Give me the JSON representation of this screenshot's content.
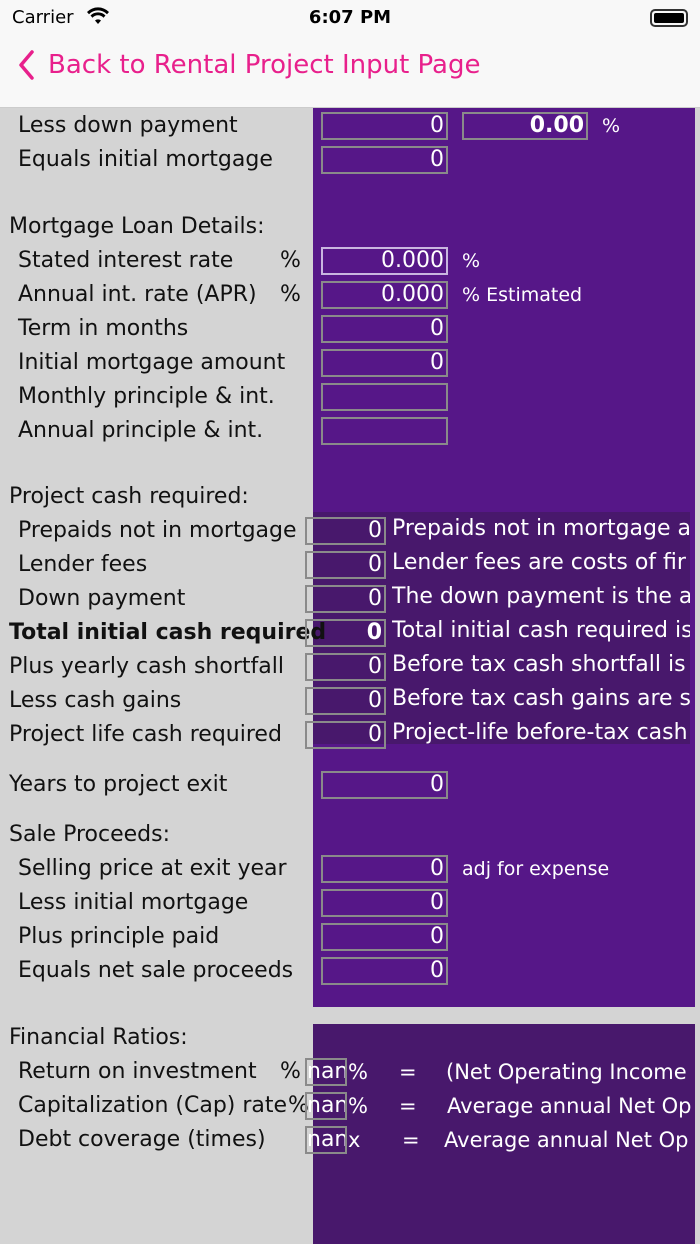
{
  "status_bar": {
    "carrier": "Carrier",
    "time": "6:07 PM"
  },
  "nav": {
    "back_label": "Back to Rental Project Input Page"
  },
  "colors": {
    "accent": "#e8208c",
    "panel": "#561788",
    "panel_dark": "#48186c",
    "background": "#d4d4d4"
  },
  "rows": [
    {
      "label": "Less down payment",
      "indent": true,
      "value": "0",
      "value2": "0.00",
      "suffix": "%"
    },
    {
      "label": "Equals initial mortgage",
      "indent": true,
      "value": "0"
    },
    {
      "label": "Mortgage Loan Details:",
      "header": true
    },
    {
      "label": "Stated interest rate",
      "indent": true,
      "unit": "%",
      "value": "0.000",
      "suffix": "%",
      "focused": true
    },
    {
      "label": "Annual int. rate (APR)",
      "indent": true,
      "unit": "%",
      "value": "0.000",
      "suffix": "% Estimated"
    },
    {
      "label": "Term in months",
      "indent": true,
      "value": "0"
    },
    {
      "label": "Initial mortgage amount",
      "indent": true,
      "value": "0"
    },
    {
      "label": "Monthly principle & int.",
      "indent": true,
      "value": ""
    },
    {
      "label": "Annual principle & int.",
      "indent": true,
      "value": ""
    },
    {
      "label": "Project cash required:",
      "header": true
    },
    {
      "label": "Prepaids not in mortgage",
      "indent": true,
      "cash": "0",
      "note": "Prepaids not in mortgage a"
    },
    {
      "label": "Lender fees",
      "indent": true,
      "cash": "0",
      "note": "Lender fees are costs of fir"
    },
    {
      "label": "Down payment",
      "indent": true,
      "cash": "0",
      "note": "The down payment is the a"
    },
    {
      "label": "Total initial cash required",
      "bold": true,
      "cash": "0",
      "note": "Total initial cash required is"
    },
    {
      "label": "Plus yearly cash shortfall",
      "cash": "0",
      "note": "Before tax cash shortfall is"
    },
    {
      "label": "Less cash gains",
      "cash": "0",
      "note": "Before tax cash gains are s"
    },
    {
      "label": "Project life cash required",
      "cash": "0",
      "note": "Project-life before-tax cash"
    },
    {
      "label": "Years to project exit",
      "value": "0"
    },
    {
      "label": "Sale Proceeds:",
      "header": true
    },
    {
      "label": "Selling price at exit year",
      "indent": true,
      "value": "0",
      "suffix": "adj for expense"
    },
    {
      "label": "Less initial mortgage",
      "indent": true,
      "value": "0"
    },
    {
      "label": "Plus principle paid",
      "indent": true,
      "value": "0"
    },
    {
      "label": "Equals net sale proceeds",
      "indent": true,
      "value": "0"
    },
    {
      "label": "Financial Ratios:",
      "header": true
    },
    {
      "label": "Return on investment",
      "indent": true,
      "unit": "%",
      "ratio": "nan",
      "rsuffix": "%",
      "eq": "=",
      "formula": "(Net Operating Income"
    },
    {
      "label": "Capitalization (Cap) rate",
      "indent": true,
      "unit": "%",
      "ratio": "nan",
      "rsuffix": "%",
      "eq": "=",
      "formula": "Average annual Net Op"
    },
    {
      "label": "Debt coverage (times)",
      "indent": true,
      "ratio": "nan",
      "rsuffix": "x",
      "eq": "=",
      "formula": "Average annual Net Op"
    }
  ]
}
